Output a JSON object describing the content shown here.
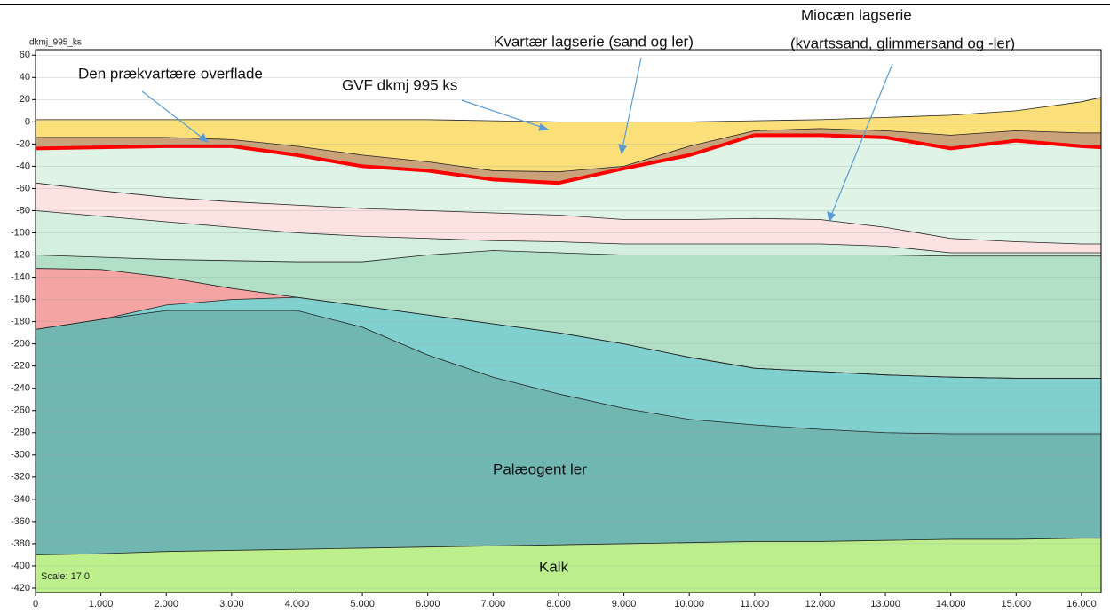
{
  "chart_data": {
    "type": "cross-section",
    "y_label": "dkmj_995_ks",
    "scale_note": "Scale: 17,0",
    "annotations": [
      "Den prækvartære overflade",
      "GVF dkmj 995 ks",
      "Kvartær lagserie (sand og ler)",
      "Miocæn lagserie",
      "(kvartssand, glimmersand og -ler)",
      "Palæogent ler",
      "Kalk"
    ],
    "x": [
      0,
      1000,
      2000,
      3000,
      4000,
      5000,
      6000,
      7000,
      8000,
      9000,
      10000,
      11000,
      12000,
      13000,
      14000,
      15000,
      16000,
      16300
    ],
    "xlim": [
      0,
      16300
    ],
    "ylim": [
      -424,
      65
    ],
    "grid": true,
    "xticks": [
      0,
      {
        "value": 1000,
        "label": "1.000"
      },
      {
        "value": 2000,
        "label": "2.000"
      },
      {
        "value": 3000,
        "label": "3.000"
      },
      {
        "value": 4000,
        "label": "4.000"
      },
      {
        "value": 5000,
        "label": "5.000"
      },
      {
        "value": 6000,
        "label": "6.000"
      },
      {
        "value": 7000,
        "label": "7.000"
      },
      {
        "value": 8000,
        "label": "8.000"
      },
      {
        "value": 9000,
        "label": "9.000"
      },
      {
        "value": 10000,
        "label": "10.000"
      },
      {
        "value": 11000,
        "label": "11.000"
      },
      {
        "value": 12000,
        "label": "12.000"
      },
      {
        "value": 13000,
        "label": "13.000"
      },
      {
        "value": 14000,
        "label": "14.000"
      },
      {
        "value": 15000,
        "label": "15.000"
      },
      {
        "value": 16000,
        "label": "16.000"
      }
    ],
    "yticks": [
      60,
      40,
      20,
      0,
      -20,
      -40,
      -60,
      -80,
      -100,
      -120,
      -140,
      -160,
      -180,
      -200,
      -220,
      -240,
      -260,
      -280,
      -300,
      -320,
      -340,
      -360,
      -380,
      -400,
      -420
    ],
    "series": [
      {
        "color": "#fbe07a",
        "line": "#222222",
        "values": [
          2,
          2,
          2,
          2,
          2,
          2,
          2,
          1,
          0,
          0,
          0,
          1,
          2,
          4,
          6,
          10,
          18,
          22
        ]
      },
      {
        "color": "#caa27a",
        "line": "#222222",
        "values": [
          -14,
          -14,
          -14,
          -16,
          -22,
          -30,
          -36,
          -44,
          -45,
          -40,
          -22,
          -8,
          -6,
          -8,
          -12,
          -8,
          -10,
          -10
        ]
      },
      {
        "color": "#dff3e6",
        "line": "#ff0000",
        "line_width": 4,
        "values": [
          -24,
          -23,
          -22,
          -22,
          -30,
          -40,
          -44,
          -52,
          -55,
          -42,
          -30,
          -12,
          -12,
          -14,
          -24,
          -17,
          -22,
          -23
        ]
      },
      {
        "color": "#fde2e2",
        "line": "#222222",
        "values": [
          -55,
          -62,
          -68,
          -72,
          -75,
          -78,
          -80,
          -82,
          -84,
          -88,
          -88,
          -87,
          -88,
          -95,
          -105,
          -108,
          -110,
          -110
        ]
      },
      {
        "color": "#d4efde",
        "line": "#222222",
        "values": [
          -80,
          -85,
          -90,
          -95,
          -100,
          -103,
          -105,
          -107,
          -108,
          -110,
          -110,
          -110,
          -110,
          -112,
          -118,
          -118,
          -118,
          -118
        ]
      },
      {
        "color": "#b1e0c6",
        "line": "#222222",
        "values": [
          -120,
          -122,
          -124,
          -125,
          -126,
          -126,
          -120,
          -116,
          -118,
          -120,
          -120,
          -120,
          -120,
          -120,
          -121,
          -121,
          -121,
          -121
        ]
      },
      {
        "color": "#f6a3a3",
        "line": "#222222",
        "values": [
          -132,
          -133,
          -140,
          -150,
          -158,
          -166,
          -174,
          -182,
          -190,
          -200,
          -212,
          -222,
          -225,
          -228,
          -230,
          -231,
          -231,
          -231
        ]
      },
      {
        "color": "#80d0cf",
        "line": "#222222",
        "values": [
          -187,
          -178,
          -165,
          -160,
          -158,
          -166,
          -174,
          -182,
          -190,
          -200,
          -212,
          -222,
          -225,
          -228,
          -230,
          -231,
          -231,
          -231
        ]
      },
      {
        "color": "#70b6b1",
        "line": "#222222",
        "values": [
          -187,
          -178,
          -170,
          -170,
          -170,
          -185,
          -210,
          -230,
          -245,
          -258,
          -268,
          -273,
          -277,
          -280,
          -281,
          -281,
          -281,
          -281
        ]
      },
      {
        "color": "#bdf08c",
        "line": "#222222",
        "values": [
          -390,
          -389,
          -387,
          -386,
          -385,
          -384,
          -383,
          -382,
          -381,
          -380,
          -379,
          -378,
          -378,
          -377,
          -376,
          -376,
          -375,
          -375
        ]
      }
    ]
  }
}
